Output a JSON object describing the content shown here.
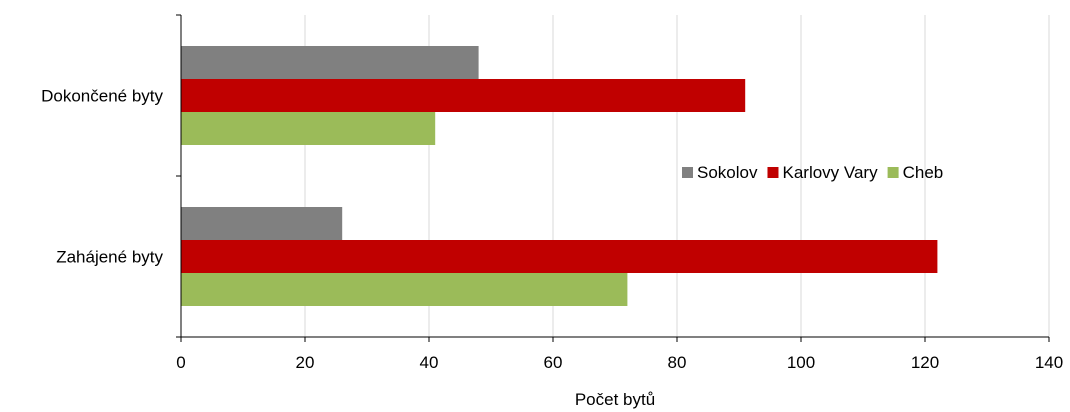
{
  "chart_data": {
    "type": "bar",
    "orientation": "horizontal",
    "categories": [
      "Dokončené byty",
      "Zahájené byty"
    ],
    "series": [
      {
        "name": "Sokolov",
        "values": [
          48,
          26
        ],
        "color": "#808080"
      },
      {
        "name": "Karlovy Vary",
        "values": [
          91,
          122
        ],
        "color": "#c00000"
      },
      {
        "name": "Cheb",
        "values": [
          41,
          72
        ],
        "color": "#9bbb59"
      }
    ],
    "xlabel": "Počet bytů",
    "ylabel": "",
    "xlim": [
      0,
      140
    ],
    "xticks": [
      0,
      20,
      40,
      60,
      80,
      100,
      120,
      140
    ],
    "grid": "vertical",
    "legend": "right-middle"
  }
}
